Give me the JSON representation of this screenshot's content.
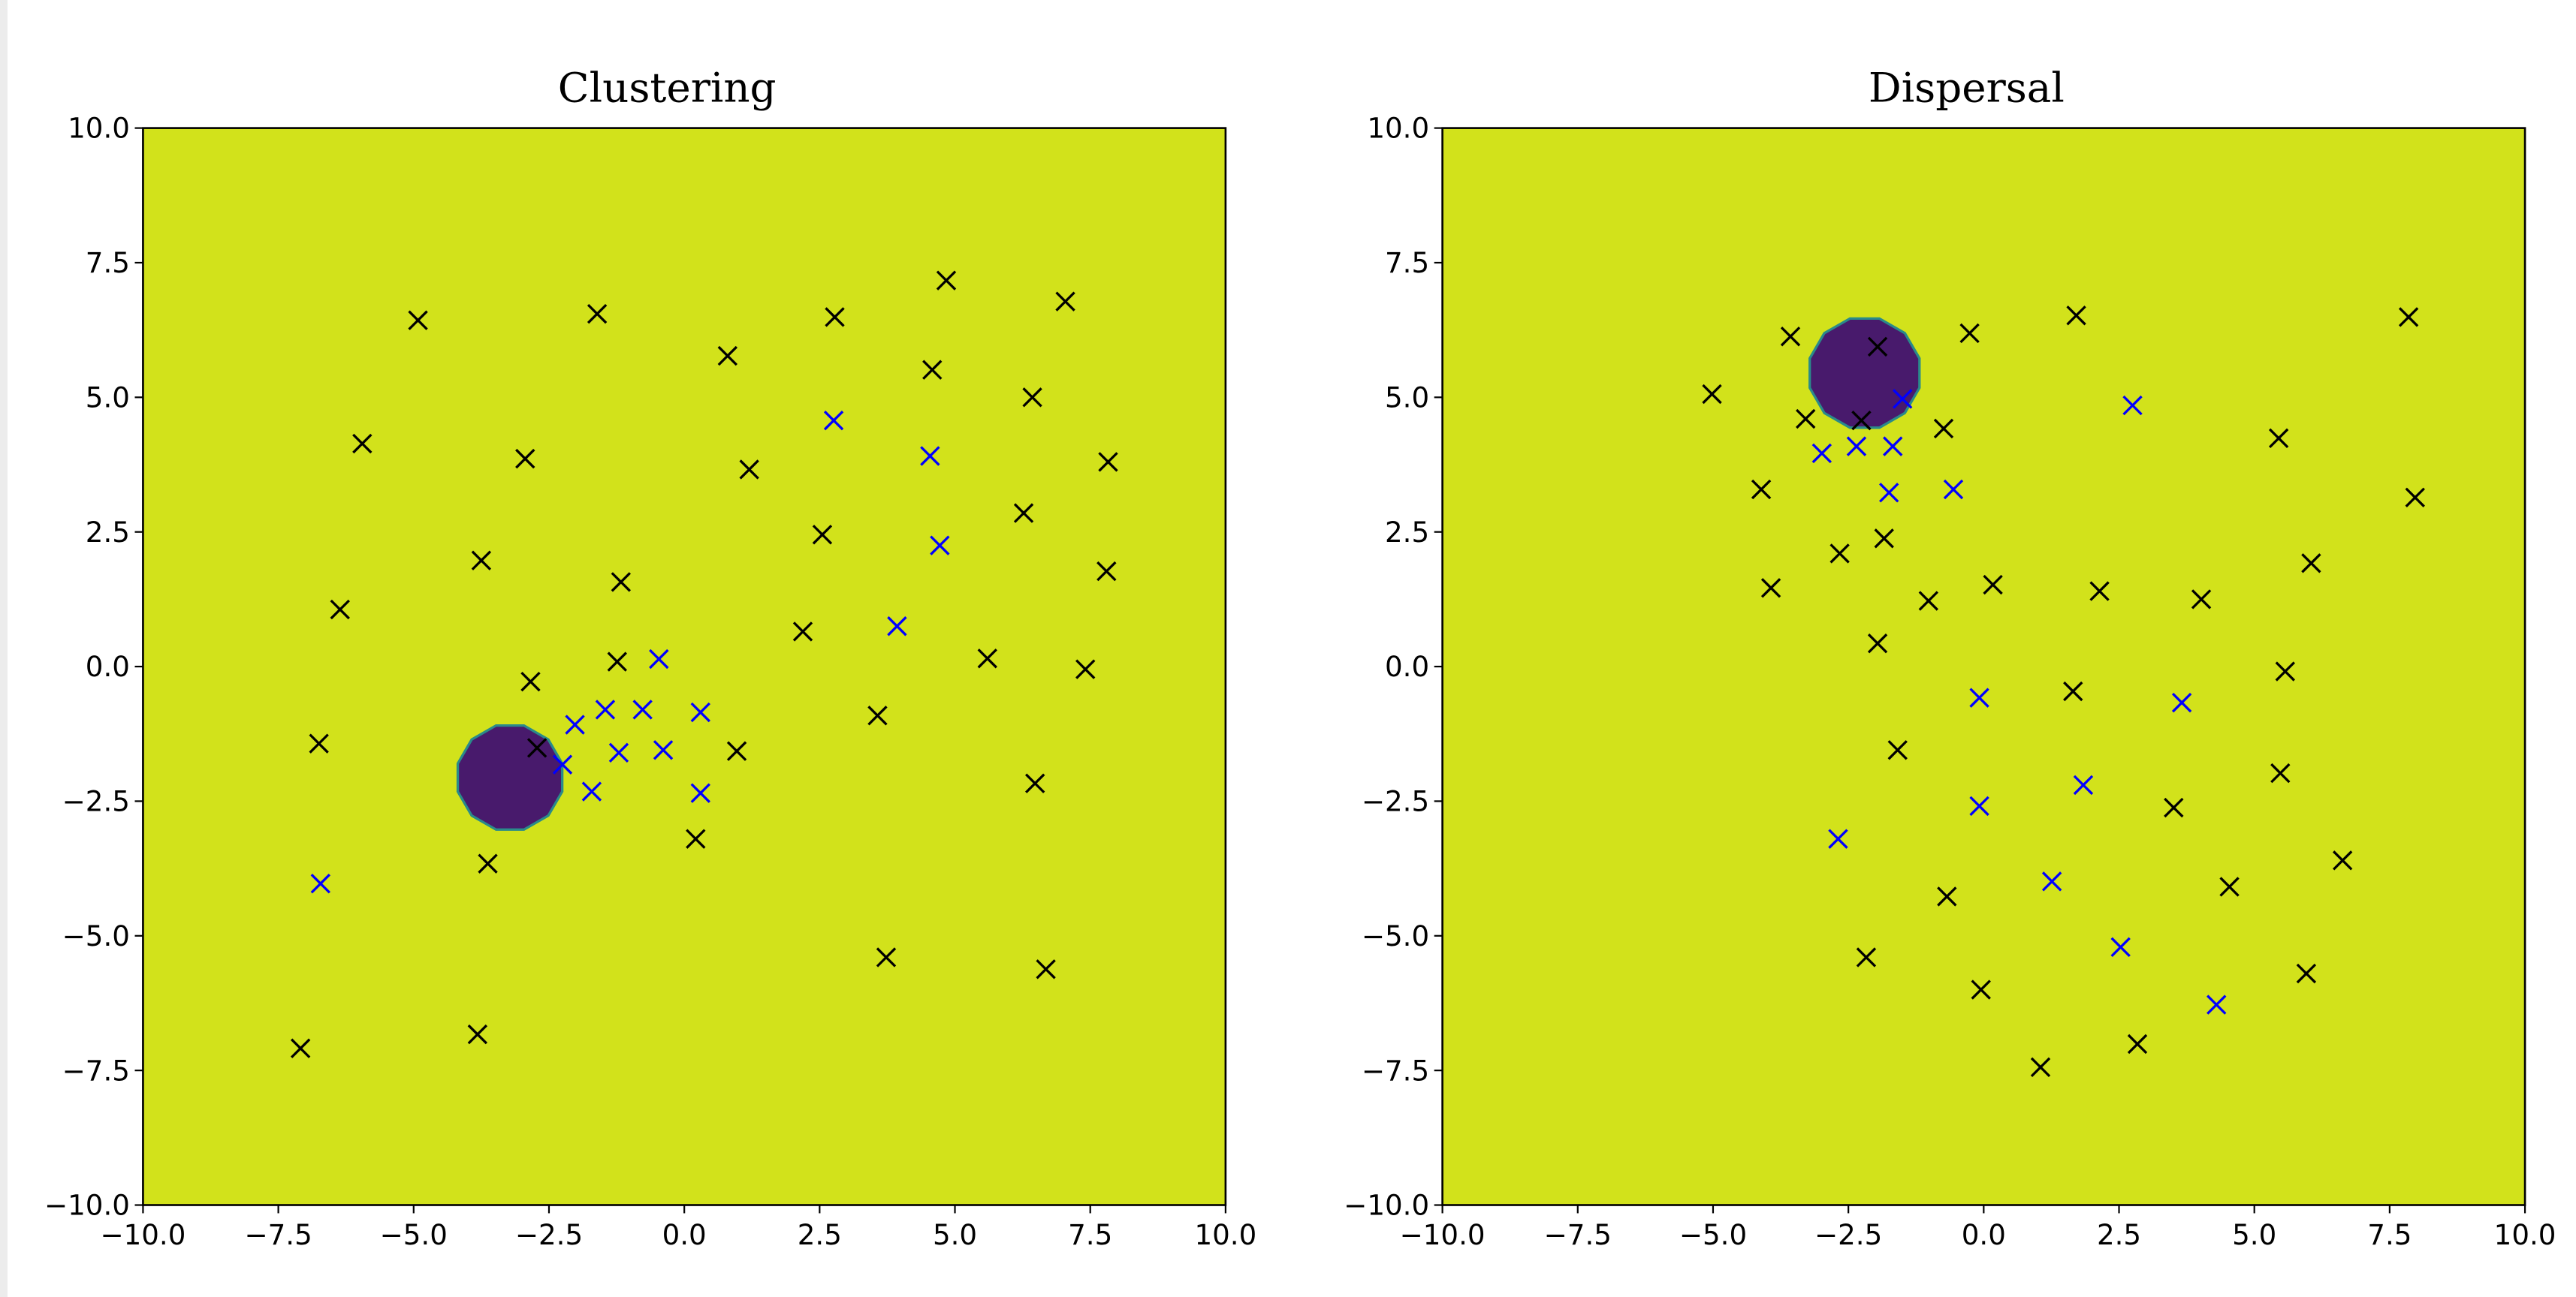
{
  "chart_data": [
    {
      "type": "scatter",
      "title": "Clustering",
      "xlim": [
        -10,
        10
      ],
      "ylim": [
        -10,
        10
      ],
      "xticks": [
        "−10.0",
        "−7.5",
        "−5.0",
        "−2.5",
        "0.0",
        "2.5",
        "5.0",
        "7.5",
        "10.0"
      ],
      "yticks": [
        "−10.0",
        "−7.5",
        "−5.0",
        "−2.5",
        "0.0",
        "2.5",
        "5.0",
        "7.5",
        "10.0"
      ],
      "tick_values": [
        -10,
        -7.5,
        -5,
        -2.5,
        0,
        2.5,
        5,
        7.5,
        10
      ],
      "background_color": "#d2e21b",
      "region": {
        "center": [
          -3.22,
          -2.06
        ],
        "radius": 1.0,
        "color": "#481a6c",
        "edge_color": "#2a8a8a"
      },
      "series": [
        {
          "name": "black",
          "color": "#000000",
          "marker": "x",
          "points": [
            [
              -4.92,
              6.43
            ],
            [
              -1.61,
              6.55
            ],
            [
              0.8,
              5.77
            ],
            [
              2.78,
              6.49
            ],
            [
              4.84,
              7.17
            ],
            [
              7.04,
              6.78
            ],
            [
              4.58,
              5.51
            ],
            [
              6.43,
              5.0
            ],
            [
              -5.95,
              4.14
            ],
            [
              -2.94,
              3.86
            ],
            [
              1.2,
              3.66
            ],
            [
              7.83,
              3.8
            ],
            [
              2.55,
              2.45
            ],
            [
              6.27,
              2.85
            ],
            [
              -3.75,
              1.97
            ],
            [
              -1.17,
              1.57
            ],
            [
              7.8,
              1.77
            ],
            [
              -6.36,
              1.06
            ],
            [
              2.19,
              0.65
            ],
            [
              -1.24,
              0.09
            ],
            [
              5.6,
              0.15
            ],
            [
              7.41,
              -0.05
            ],
            [
              -2.84,
              -0.28
            ],
            [
              3.57,
              -0.91
            ],
            [
              -6.75,
              -1.43
            ],
            [
              -2.72,
              -1.51
            ],
            [
              0.97,
              -1.57
            ],
            [
              6.48,
              -2.17
            ],
            [
              0.21,
              -3.2
            ],
            [
              -3.63,
              -3.66
            ],
            [
              3.73,
              -5.4
            ],
            [
              6.68,
              -5.62
            ],
            [
              -7.09,
              -7.09
            ],
            [
              -3.82,
              -6.83
            ]
          ]
        },
        {
          "name": "blue",
          "color": "#0000ff",
          "marker": "x",
          "points": [
            [
              2.76,
              4.57
            ],
            [
              4.54,
              3.91
            ],
            [
              4.72,
              2.25
            ],
            [
              3.93,
              0.75
            ],
            [
              -0.47,
              0.14
            ],
            [
              -1.46,
              -0.8
            ],
            [
              -0.77,
              -0.8
            ],
            [
              0.3,
              -0.85
            ],
            [
              -2.02,
              -1.08
            ],
            [
              -2.25,
              -1.82
            ],
            [
              -1.21,
              -1.6
            ],
            [
              -0.39,
              -1.55
            ],
            [
              -1.71,
              -2.32
            ],
            [
              0.3,
              -2.35
            ],
            [
              -6.72,
              -4.03
            ]
          ]
        }
      ]
    },
    {
      "type": "scatter",
      "title": "Dispersal",
      "xlim": [
        -10,
        10
      ],
      "ylim": [
        -10,
        10
      ],
      "xticks": [
        "−10.0",
        "−7.5",
        "−5.0",
        "−2.5",
        "0.0",
        "2.5",
        "5.0",
        "7.5",
        "10.0"
      ],
      "yticks": [
        "−10.0",
        "−7.5",
        "−5.0",
        "−2.5",
        "0.0",
        "2.5",
        "5.0",
        "7.5",
        "10.0"
      ],
      "tick_values": [
        -10,
        -7.5,
        -5,
        -2.5,
        0,
        2.5,
        5,
        7.5,
        10
      ],
      "background_color": "#d2e21b",
      "region": {
        "center": [
          -2.2,
          5.45
        ],
        "radius": 1.05,
        "color": "#481a6c",
        "edge_color": "#2a8a8a"
      },
      "series": [
        {
          "name": "black",
          "color": "#000000",
          "marker": "x",
          "points": [
            [
              -5.02,
              5.06
            ],
            [
              -3.57,
              6.13
            ],
            [
              -1.96,
              5.94
            ],
            [
              -0.26,
              6.19
            ],
            [
              1.71,
              6.52
            ],
            [
              7.85,
              6.49
            ],
            [
              -4.11,
              3.29
            ],
            [
              -3.29,
              4.6
            ],
            [
              -2.26,
              4.57
            ],
            [
              -0.74,
              4.42
            ],
            [
              5.45,
              4.24
            ],
            [
              7.97,
              3.14
            ],
            [
              -3.93,
              1.46
            ],
            [
              -2.66,
              2.1
            ],
            [
              -1.84,
              2.38
            ],
            [
              -1.02,
              1.22
            ],
            [
              0.17,
              1.52
            ],
            [
              2.14,
              1.4
            ],
            [
              4.02,
              1.25
            ],
            [
              6.05,
              1.92
            ],
            [
              -1.96,
              0.43
            ],
            [
              5.57,
              -0.09
            ],
            [
              1.65,
              -0.46
            ],
            [
              -1.59,
              -1.55
            ],
            [
              5.48,
              -1.98
            ],
            [
              3.51,
              -2.62
            ],
            [
              6.63,
              -3.6
            ],
            [
              4.54,
              -4.09
            ],
            [
              -0.68,
              -4.27
            ],
            [
              -2.17,
              -5.4
            ],
            [
              -0.05,
              -6.0
            ],
            [
              5.96,
              -5.7
            ],
            [
              2.84,
              -7.01
            ],
            [
              1.05,
              -7.44
            ]
          ]
        },
        {
          "name": "blue",
          "color": "#0000ff",
          "marker": "x",
          "points": [
            [
              -1.5,
              4.97
            ],
            [
              -2.99,
              3.96
            ],
            [
              -2.35,
              4.09
            ],
            [
              -1.68,
              4.09
            ],
            [
              -1.75,
              3.23
            ],
            [
              -0.56,
              3.29
            ],
            [
              2.75,
              4.85
            ],
            [
              -0.08,
              -0.58
            ],
            [
              3.66,
              -0.67
            ],
            [
              -0.08,
              -2.59
            ],
            [
              1.84,
              -2.2
            ],
            [
              -2.69,
              -3.2
            ],
            [
              1.26,
              -3.99
            ],
            [
              2.53,
              -5.21
            ],
            [
              4.3,
              -6.28
            ]
          ]
        }
      ]
    }
  ]
}
